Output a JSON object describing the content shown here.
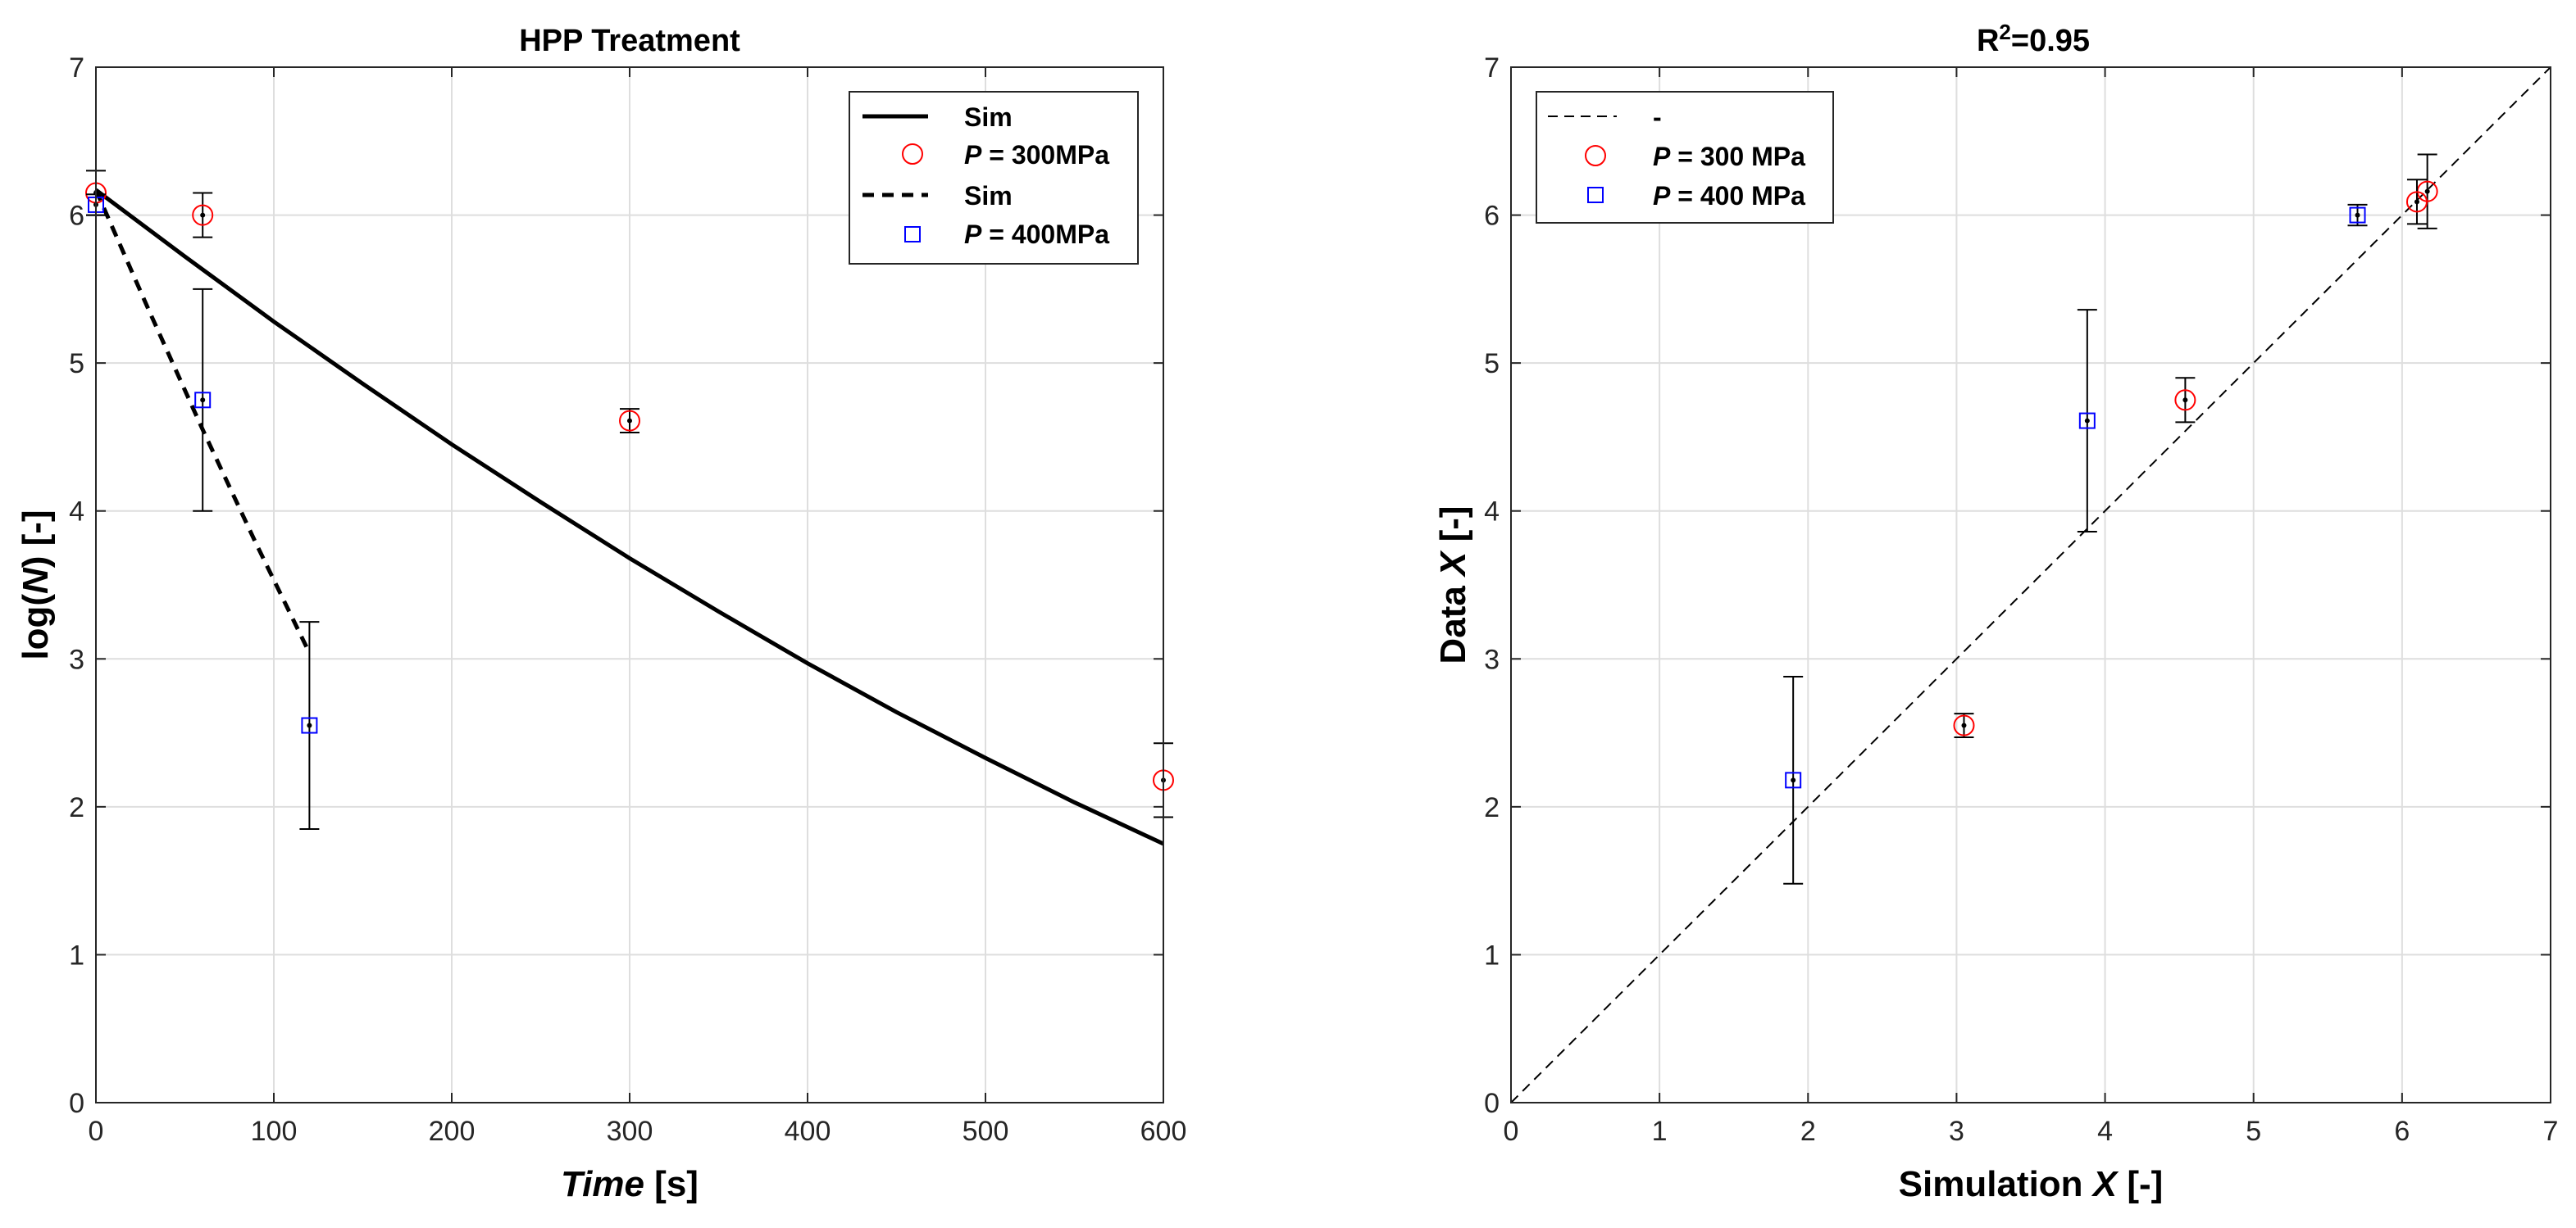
{
  "chart_data": [
    {
      "type": "line",
      "title": "HPP Treatment",
      "xlabel_italic": "Time",
      "xlabel_rest": " [s]",
      "ylabel_pre": "log(",
      "ylabel_italic": "N",
      "ylabel_post": ") [-]",
      "xlim": [
        0,
        600
      ],
      "ylim": [
        0,
        7
      ],
      "xticks": [
        0,
        100,
        200,
        300,
        400,
        500,
        600
      ],
      "yticks": [
        0,
        1,
        2,
        3,
        4,
        5,
        6,
        7
      ],
      "grid": true,
      "legend_position": "top-right",
      "legend": [
        {
          "label": "Sim",
          "style": "solid"
        },
        {
          "label_italic": "P",
          "label_rest": " = 300MPa",
          "marker": "circle",
          "color": "#ff0000"
        },
        {
          "label": "Sim",
          "style": "dashed"
        },
        {
          "label_italic": "P",
          "label_rest": " = 400MPa",
          "marker": "square",
          "color": "#0000ff"
        }
      ],
      "series": [
        {
          "kind": "line",
          "style": "solid",
          "x": [
            0,
            50,
            100,
            150,
            200,
            250,
            300,
            350,
            400,
            450,
            500,
            550,
            600
          ],
          "y": [
            6.17,
            5.72,
            5.28,
            4.86,
            4.45,
            4.06,
            3.68,
            3.32,
            2.97,
            2.64,
            2.33,
            2.03,
            1.75
          ]
        },
        {
          "kind": "markers",
          "marker": "circle",
          "color": "#ff0000",
          "x": [
            0,
            60,
            300,
            600
          ],
          "y": [
            6.15,
            6.0,
            4.61,
            2.18
          ],
          "err": [
            0.15,
            0.15,
            0.08,
            0.25
          ]
        },
        {
          "kind": "line",
          "style": "dashed",
          "x": [
            0,
            30,
            60,
            90,
            120
          ],
          "y": [
            6.17,
            5.35,
            4.55,
            3.78,
            3.04
          ]
        },
        {
          "kind": "markers",
          "marker": "square",
          "color": "#0000ff",
          "x": [
            0,
            60,
            120
          ],
          "y": [
            6.07,
            4.75,
            2.55
          ],
          "err": [
            0.07,
            0.75,
            0.7
          ]
        }
      ]
    },
    {
      "type": "scatter",
      "title_pre": "R",
      "title_sup": "2",
      "title_post": "=0.95",
      "xlabel_pre": "Simulation ",
      "xlabel_italic": "X",
      "xlabel_post": " [-]",
      "ylabel_pre": "Data ",
      "ylabel_italic": "X",
      "ylabel_post": " [-]",
      "xlim": [
        0,
        7
      ],
      "ylim": [
        0,
        7
      ],
      "xticks": [
        0,
        1,
        2,
        3,
        4,
        5,
        6,
        7
      ],
      "yticks": [
        0,
        1,
        2,
        3,
        4,
        5,
        6,
        7
      ],
      "grid": true,
      "legend_position": "top-left",
      "legend": [
        {
          "label": "-",
          "style": "thin-dashed"
        },
        {
          "label_italic": "P",
          "label_rest": " = 300 MPa",
          "marker": "circle",
          "color": "#ff0000"
        },
        {
          "label_italic": "P",
          "label_rest": " = 400 MPa",
          "marker": "square",
          "color": "#0000ff"
        }
      ],
      "series": [
        {
          "kind": "line",
          "style": "thin-dashed",
          "x": [
            0,
            7
          ],
          "y": [
            0,
            7
          ]
        },
        {
          "kind": "markers",
          "marker": "circle",
          "color": "#ff0000",
          "x": [
            6.17,
            6.1,
            4.54,
            3.05
          ],
          "y": [
            6.16,
            6.09,
            4.75,
            2.55
          ],
          "err": [
            0.25,
            0.15,
            0.15,
            0.08
          ]
        },
        {
          "kind": "markers",
          "marker": "square",
          "color": "#0000ff",
          "x": [
            5.7,
            3.88,
            1.9
          ],
          "y": [
            6.0,
            4.61,
            2.18
          ],
          "err": [
            0.07,
            0.75,
            0.7
          ]
        }
      ]
    }
  ]
}
